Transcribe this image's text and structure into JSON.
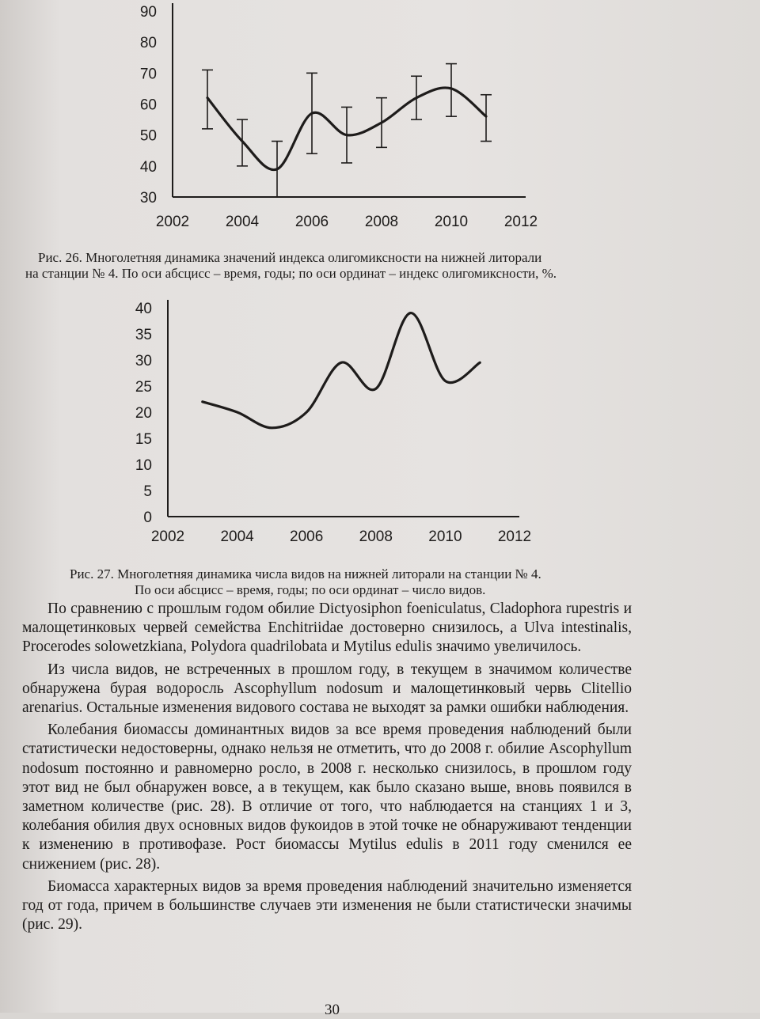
{
  "chart_data": [
    {
      "type": "line",
      "x": [
        2003,
        2004,
        2005,
        2006,
        2007,
        2008,
        2009,
        2010,
        2011
      ],
      "series": [
        {
          "values": [
            62,
            48,
            39,
            57,
            50,
            54,
            62,
            65,
            56
          ],
          "error_low": [
            52,
            40,
            30,
            44,
            41,
            46,
            55,
            56,
            48
          ],
          "error_high": [
            71,
            55,
            48,
            70,
            59,
            62,
            69,
            73,
            63
          ]
        }
      ],
      "xlim": [
        2002,
        2012
      ],
      "ylim": [
        30,
        90
      ],
      "x_ticks": [
        "2002",
        "2004",
        "2006",
        "2008",
        "2010",
        "2012"
      ],
      "y_ticks": [
        "30",
        "40",
        "50",
        "60",
        "70",
        "80",
        "90"
      ],
      "x_tick_values": [
        2002,
        2004,
        2006,
        2008,
        2010,
        2012
      ],
      "y_tick_values": [
        30,
        40,
        50,
        60,
        70,
        80,
        90
      ],
      "grid": false,
      "legend": "none",
      "line_color": "#1e1c1b"
    },
    {
      "type": "line",
      "x": [
        2003,
        2004,
        2005,
        2006,
        2007,
        2008,
        2009,
        2010,
        2011
      ],
      "series": [
        {
          "values": [
            22,
            20,
            17,
            20,
            29.5,
            24.5,
            39,
            26,
            29.5
          ]
        }
      ],
      "xlim": [
        2002,
        2012
      ],
      "ylim": [
        0,
        40
      ],
      "x_ticks": [
        "2002",
        "2004",
        "2006",
        "2008",
        "2010",
        "2012"
      ],
      "y_ticks": [
        "0",
        "5",
        "10",
        "15",
        "20",
        "25",
        "30",
        "35",
        "40"
      ],
      "x_tick_values": [
        2002,
        2004,
        2006,
        2008,
        2010,
        2012
      ],
      "y_tick_values": [
        0,
        5,
        10,
        15,
        20,
        25,
        30,
        35,
        40
      ],
      "grid": false,
      "legend": "none",
      "line_color": "#1e1c1b"
    }
  ],
  "captions": {
    "fig26_line1": "Рис. 26. Многолетняя динамика значений индекса олигомиксности на нижней литорали",
    "fig26_line2": "на станции № 4. По оси абсцисс – время, годы; по оси ординат – индекс олигомиксности, %.",
    "fig27_line1": "Рис. 27. Многолетняя динамика числа видов на нижней литорали на станции № 4.",
    "fig27_line2": "По оси абсцисс – время, годы; по оси ординат – число видов."
  },
  "body": {
    "p1": "По сравнению с прошлым годом обилие Dictyosiphon foeniculatus, Cladophora rupestris и малощетинковых червей семейства Enchitriidae достоверно снизилось, а Ulva intestinalis, Procerodes solowetzkiana, Polydora quadrilobata и Mytilus edulis значимо увеличилось.",
    "p2": "Из числа видов, не встреченных в прошлом году, в текущем в значимом количестве обнаружена бурая водоросль Ascophyllum nodosum и малощетинковый червь Clitellio arenarius. Остальные изменения видового состава не выходят за рамки ошибки наблюдения.",
    "p3": "Колебания биомассы доминантных видов за все время проведения наблюдений были статистически недостоверны, однако нельзя не отметить, что до 2008 г. обилие Ascophyllum nodosum постоянно и равномерно росло, в 2008 г. несколько снизилось, в прошлом году этот вид не был обнаружен вовсе, а в текущем, как было сказано выше, вновь появился в заметном количестве (рис. 28). В отличие от того, что наблюдается на станциях 1 и 3, колебания обилия двух основных видов фукоидов в этой точке не обнаруживают тенденции к изменению в противофазе. Рост биомассы Mytilus edulis в 2011 году сменился ее снижением (рис. 28).",
    "p4": "Биомасса характерных видов за время проведения наблюдений значительно изменяется год от года, причем в большинстве случаев эти изменения не были статистически значимы (рис. 29)."
  },
  "page_number": "30"
}
